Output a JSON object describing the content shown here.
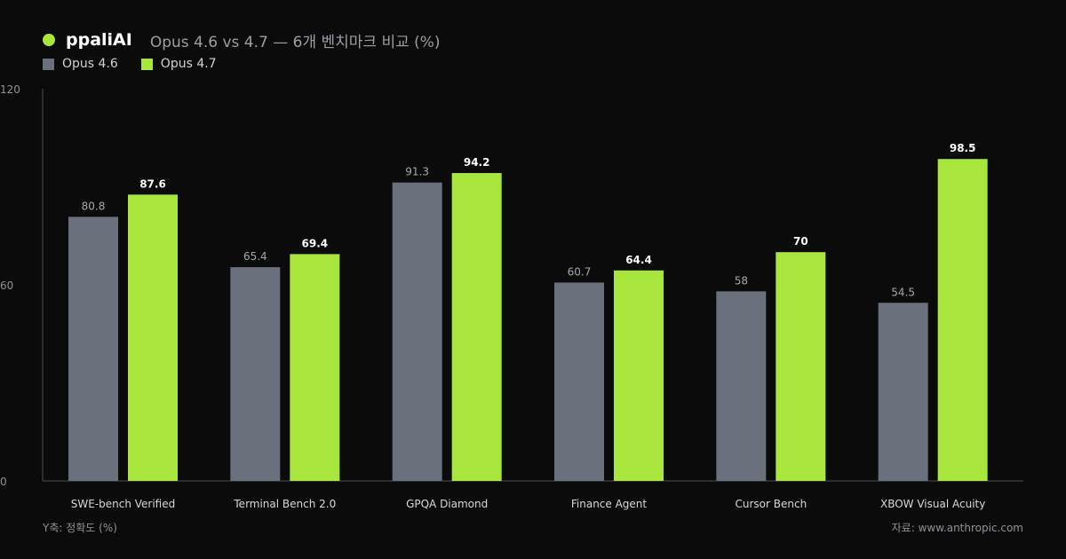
{
  "header": {
    "brand": "ppaliAI",
    "subtitle": "Opus 4.6 vs 4.7 — 6개 벤치마크 비교 (%)"
  },
  "colors": {
    "series_a": "#6b717c",
    "series_b": "#a8e63d",
    "axis": "#4a4d52",
    "tick_text": "#8e9299",
    "label_a": "#a3a7ae",
    "label_b": "#ffffff"
  },
  "footer": {
    "ylabel_note": "Y축: 정확도 (%)",
    "source": "자료: www.anthropic.com"
  },
  "chart_data": {
    "type": "bar",
    "title": "Opus 4.6 vs 4.7 — 6개 벤치마크 비교 (%)",
    "ylabel": "Y축: 정확도 (%)",
    "ylim": [
      0,
      120
    ],
    "yticks": [
      0,
      60,
      120
    ],
    "grid": false,
    "legend": "top-left",
    "categories": [
      "SWE-bench Verified",
      "Terminal Bench 2.0",
      "GPQA Diamond",
      "Finance Agent",
      "Cursor Bench",
      "XBOW Visual Acuity"
    ],
    "series": [
      {
        "name": "Opus 4.6",
        "values": [
          80.8,
          65.4,
          91.3,
          60.7,
          58,
          54.5
        ]
      },
      {
        "name": "Opus 4.7",
        "values": [
          87.6,
          69.4,
          94.2,
          64.4,
          70,
          98.5
        ]
      }
    ]
  }
}
